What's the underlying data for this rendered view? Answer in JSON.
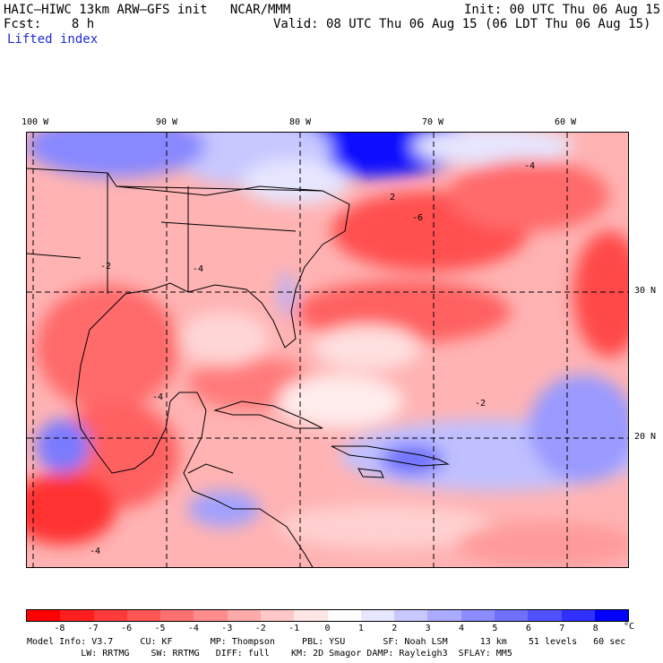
{
  "header": {
    "title": "HAIC–HIWC 13km ARW–GFS init   NCAR/MMM",
    "init": "Init: 00 UTC Thu 06 Aug 15",
    "fcst": "Fcst:    8 h",
    "valid": "Valid: 08 UTC Thu 06 Aug 15 (06 LDT Thu 06 Aug 15)",
    "field": "Lifted index"
  },
  "map": {
    "lon_labels": [
      "100 W",
      "90 W",
      "80 W",
      "70 W",
      "60 W"
    ],
    "lat_labels": [
      "30 N",
      "20 N"
    ],
    "contour_labels": [
      "-2",
      "-4",
      "-6",
      "2"
    ]
  },
  "colorbar": {
    "ticks": [
      "-8",
      "-7",
      "-6",
      "-5",
      "-4",
      "-3",
      "-2",
      "-1",
      "0",
      "1",
      "2",
      "3",
      "4",
      "5",
      "6",
      "7",
      "8"
    ],
    "unit": "°C",
    "colors": [
      "#ff0000",
      "#ff1e1e",
      "#ff3a3a",
      "#ff5555",
      "#ff7070",
      "#ff8c8c",
      "#ffaaaa",
      "#ffc8c8",
      "#ffe6e6",
      "#ffffff",
      "#e6e6ff",
      "#c8c8ff",
      "#aaaaff",
      "#8c8cff",
      "#7070ff",
      "#5050ff",
      "#3030ff",
      "#0000ff"
    ]
  },
  "footer": {
    "line1": "Model Info: V3.7     CU: KF       MP: Thompson     PBL: YSU       SF: Noah LSM      13 km    51 levels   60 sec",
    "line2": "          LW: RRTMG    SW: RRTMG   DIFF: full    KM: 2D Smagor DAMP: Rayleigh3  SFLAY: MM5"
  }
}
